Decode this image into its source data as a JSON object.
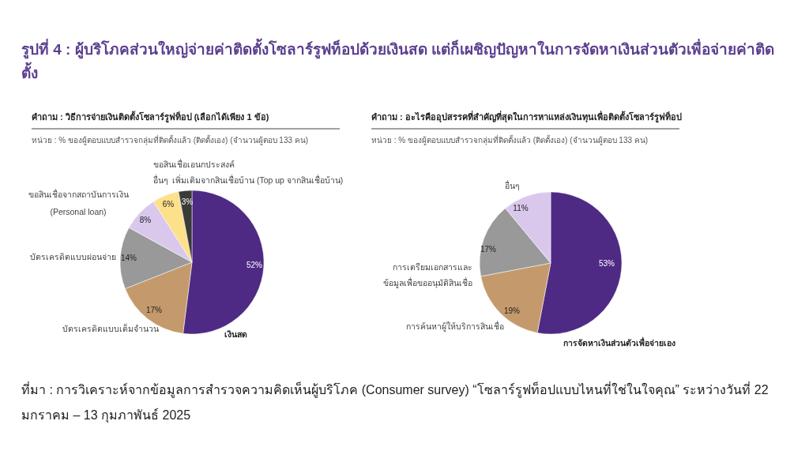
{
  "chart_data": [
    {
      "type": "pie",
      "title": "คำถาม : วิธีการจ่ายเงินติดตั้งโซลาร์รูฟท็อป (เลือกได้เพียง 1 ข้อ)",
      "subtitle": "หน่วย : % ของผู้ตอบแบบสำรวจกลุ่มที่ติดตั้งแล้ว (ติดตั้งเอง) (จำนวนผู้ตอบ 133 คน)",
      "categories": [
        "เงินสด",
        "บัตรเครดิตแบบเต็มจำนวน",
        "บัตรเครดิตแบบผ่อนจ่าย",
        "ขอสินเชื่อจากสถาบันการเงิน\n(Personal loan)",
        "อื่นๆ",
        "ขอสินเชื่อเอนกประสงค์\nเพิ่มเติมจากสินเชื่อบ้าน (Top up จากสินเชื่อบ้าน)"
      ],
      "values": [
        52,
        17,
        14,
        8,
        6,
        3
      ],
      "colors": [
        "#4e2a84",
        "#c49a6c",
        "#999999",
        "#d9c8ec",
        "#fde08a",
        "#3a3a3a"
      ],
      "value_labels": [
        "52%",
        "17%",
        "14%",
        "8%",
        "6%",
        "3%"
      ],
      "annotations": [
        "รูปที่ 4 : ผู้บริโภคส่วนใหญ่จ่ายค่าติดตั้งโซลาร์รูฟท็อปด้วยเงินสด แต่ก็เผชิญปัญหาในการจัดหาเงินส่วนตัวเพื่อจ่ายค่าติดตั้ง",
        "ที่มา : การวิเคราะห์จากข้อมูลการสำรวจความคิดเห็นผู้บริโภค (Consumer survey) “โซลาร์รูฟท็อปแบบไหนที่ใช่ในใจคุณ” ระหว่างวันที่ 22 มกราคม – 13 กุมภาพันธ์ 2025"
      ]
    },
    {
      "type": "pie",
      "title": "คำถาม : อะไรคืออุปสรรคที่สำคัญที่สุดในการหาแหล่งเงินทุนเพื่อติดตั้งโซลาร์รูฟท็อป",
      "subtitle": "หน่วย : % ของผู้ตอบแบบสำรวจกลุ่มที่ติดตั้งแล้ว (ติดตั้งเอง) (จำนวนผู้ตอบ 133 คน)",
      "categories": [
        "การจัดหาเงินส่วนตัวเพื่อจ่ายเอง",
        "การค้นหาผู้ให้บริการสินเชื่อ",
        "การเตรียมเอกสารและ\nข้อมูลเพื่อขออนุมัติสินเชื่อ",
        "อื่นๆ"
      ],
      "values": [
        53,
        19,
        17,
        11
      ],
      "colors": [
        "#4e2a84",
        "#c49a6c",
        "#999999",
        "#d9c8ec"
      ],
      "value_labels": [
        "53%",
        "19%",
        "17%",
        "11%"
      ]
    }
  ]
}
